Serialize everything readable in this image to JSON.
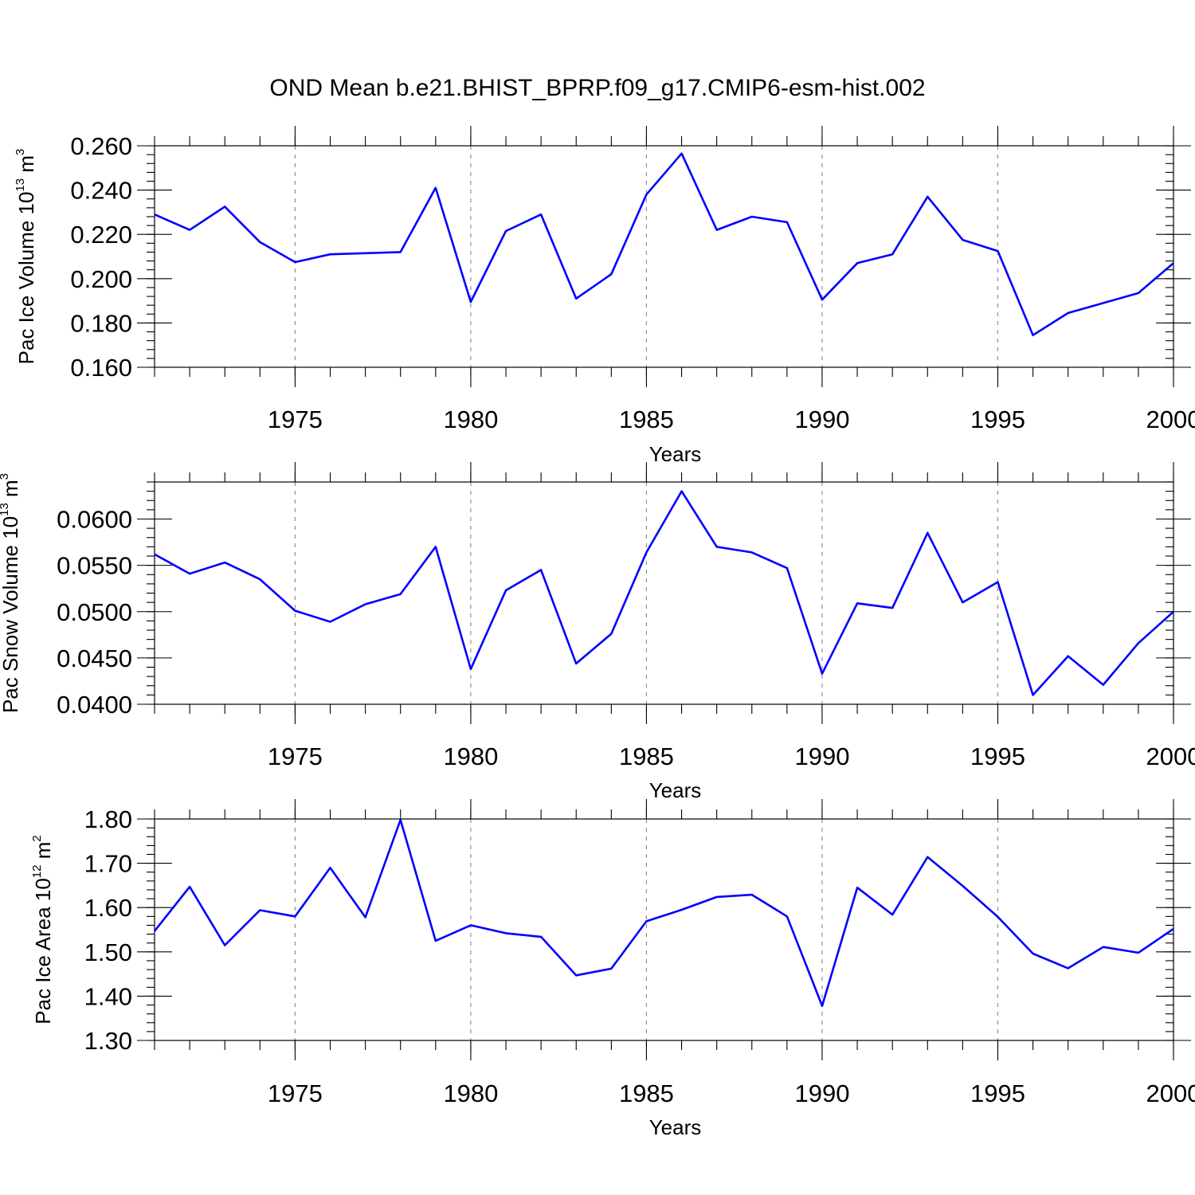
{
  "title": "OND Mean b.e21.BHIST_BPRP.f09_g17.CMIP6-esm-hist.002",
  "chart_data": [
    {
      "type": "line",
      "ylabel": "Pac Ice Volume 10",
      "ylabel_exp": "13",
      "ylabel_unit": " m",
      "ylabel_unit_exp": "3",
      "xlabel": "Years",
      "xlim": [
        1971,
        2000
      ],
      "ylim": [
        0.16,
        0.26
      ],
      "yticks": [
        0.16,
        0.18,
        0.2,
        0.22,
        0.24,
        0.26
      ],
      "ytick_labels": [
        "0.160",
        "0.180",
        "0.200",
        "0.220",
        "0.240",
        "0.260"
      ],
      "xticks": [
        1975,
        1980,
        1985,
        1990,
        1995,
        2000
      ],
      "xtick_labels": [
        "1975",
        "1980",
        "1985",
        "1990",
        "1995",
        "2000"
      ],
      "grid": "vertical dashed at major x ticks",
      "color": "#0000ff",
      "x": [
        1971,
        1972,
        1973,
        1974,
        1975,
        1976,
        1977,
        1978,
        1979,
        1980,
        1981,
        1982,
        1983,
        1984,
        1985,
        1986,
        1987,
        1988,
        1989,
        1990,
        1991,
        1992,
        1993,
        1994,
        1995,
        1996,
        1997,
        1998,
        1999,
        2000
      ],
      "values": [
        0.229,
        0.222,
        0.2325,
        0.2165,
        0.2075,
        0.211,
        0.2115,
        0.212,
        0.241,
        0.1895,
        0.2215,
        0.229,
        0.191,
        0.202,
        0.238,
        0.2565,
        0.222,
        0.228,
        0.2255,
        0.1905,
        0.207,
        0.211,
        0.237,
        0.2175,
        0.2125,
        0.1745,
        0.1845,
        0.189,
        0.1935,
        0.207
      ]
    },
    {
      "type": "line",
      "ylabel": "Pac Snow Volume 10",
      "ylabel_exp": "13",
      "ylabel_unit": " m",
      "ylabel_unit_exp": "3",
      "xlabel": "Years",
      "xlim": [
        1971,
        2000
      ],
      "ylim": [
        0.04,
        0.064
      ],
      "yticks": [
        0.04,
        0.045,
        0.05,
        0.055,
        0.06
      ],
      "ytick_labels": [
        "0.0400",
        "0.0450",
        "0.0500",
        "0.0550",
        "0.0600"
      ],
      "xticks": [
        1975,
        1980,
        1985,
        1990,
        1995,
        2000
      ],
      "xtick_labels": [
        "1975",
        "1980",
        "1985",
        "1990",
        "1995",
        "2000"
      ],
      "grid": "vertical dashed at major x ticks",
      "color": "#0000ff",
      "x": [
        1971,
        1972,
        1973,
        1974,
        1975,
        1976,
        1977,
        1978,
        1979,
        1980,
        1981,
        1982,
        1983,
        1984,
        1985,
        1986,
        1987,
        1988,
        1989,
        1990,
        1991,
        1992,
        1993,
        1994,
        1995,
        1996,
        1997,
        1998,
        1999,
        2000
      ],
      "values": [
        0.0562,
        0.0541,
        0.0553,
        0.0535,
        0.0501,
        0.0489,
        0.0508,
        0.0519,
        0.057,
        0.0438,
        0.0523,
        0.0545,
        0.0444,
        0.0476,
        0.0564,
        0.063,
        0.057,
        0.0564,
        0.0547,
        0.0433,
        0.0509,
        0.0504,
        0.0585,
        0.051,
        0.0532,
        0.041,
        0.0452,
        0.0421,
        0.0466,
        0.05
      ]
    },
    {
      "type": "line",
      "ylabel": "Pac Ice Area 10",
      "ylabel_exp": "12",
      "ylabel_unit": " m",
      "ylabel_unit_exp": "2",
      "xlabel": "Years",
      "xlim": [
        1971,
        2000
      ],
      "ylim": [
        1.3,
        1.8
      ],
      "yticks": [
        1.3,
        1.4,
        1.5,
        1.6,
        1.7,
        1.8
      ],
      "ytick_labels": [
        "1.30",
        "1.40",
        "1.50",
        "1.60",
        "1.70",
        "1.80"
      ],
      "xticks": [
        1975,
        1980,
        1985,
        1990,
        1995,
        2000
      ],
      "xtick_labels": [
        "1975",
        "1980",
        "1985",
        "1990",
        "1995",
        "2000"
      ],
      "grid": "vertical dashed at major x ticks",
      "color": "#0000ff",
      "x": [
        1971,
        1972,
        1973,
        1974,
        1975,
        1976,
        1977,
        1978,
        1979,
        1980,
        1981,
        1982,
        1983,
        1984,
        1985,
        1986,
        1987,
        1988,
        1989,
        1990,
        1991,
        1992,
        1993,
        1994,
        1995,
        1996,
        1997,
        1998,
        1999,
        2000
      ],
      "values": [
        1.547,
        1.647,
        1.515,
        1.594,
        1.58,
        1.69,
        1.578,
        1.798,
        1.525,
        1.56,
        1.542,
        1.534,
        1.447,
        1.462,
        1.569,
        1.595,
        1.624,
        1.629,
        1.58,
        1.378,
        1.645,
        1.584,
        1.714,
        1.649,
        1.579,
        1.496,
        1.463,
        1.511,
        1.498,
        1.552
      ]
    }
  ]
}
